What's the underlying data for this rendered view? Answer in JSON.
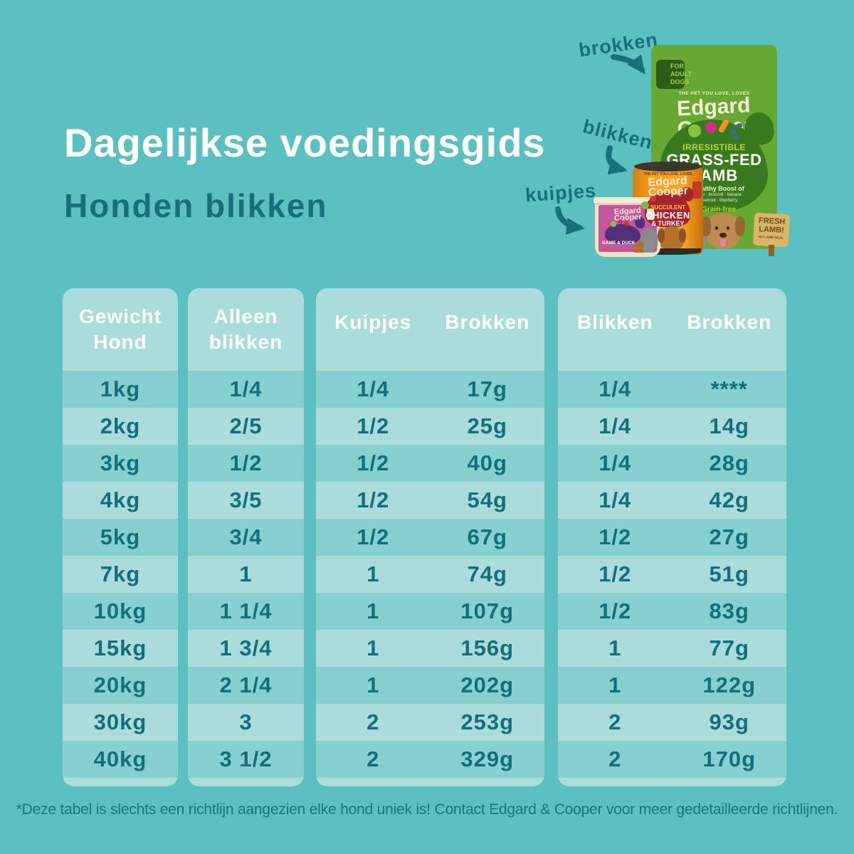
{
  "title": "Dagelijkse voedingsgids",
  "subtitle": "Honden blikken",
  "labels": {
    "brokken": "brokken",
    "blikken": "blikken",
    "kuipjes": "kuipjes"
  },
  "brand": {
    "line1": "Edgard",
    "line2": "Cooper"
  },
  "products": {
    "bag": {
      "badge_l1": "FOR",
      "badge_l2": "ADULT",
      "badge_l3": "DOGS",
      "tagline": "THE PET YOU LOVE, LOVES",
      "flavor_pre": "IRRESISTIBLE",
      "flavor_main1": "GRASS-FED",
      "flavor_main2": "LAMB",
      "boost_title": "Healthy Boost of",
      "boost_line1": "pear · broccoli · banana",
      "boost_line2": "beetroot · blueberry",
      "grain": "Grain-free",
      "sign_l1": "FRESH",
      "sign_l2": "LAMB!",
      "sign_small": "NO LAMB MEAL"
    },
    "can": {
      "tagline": "THE PET YOU LOVE, LOVES",
      "flavor_pre": "SUCCULENT",
      "flavor_main1": "CHICKEN",
      "flavor_main2": "& TURKEY"
    },
    "tub": {
      "flavor_main": "GAME & DUCK"
    }
  },
  "table": {
    "panels": [
      {
        "id": "gewicht-hond",
        "header_lines": [
          "Gewicht",
          "Hond"
        ],
        "rows": [
          [
            "1kg"
          ],
          [
            "2kg"
          ],
          [
            "3kg"
          ],
          [
            "4kg"
          ],
          [
            "5kg"
          ],
          [
            "7kg"
          ],
          [
            "10kg"
          ],
          [
            "15kg"
          ],
          [
            "20kg"
          ],
          [
            "30kg"
          ],
          [
            "40kg"
          ]
        ]
      },
      {
        "id": "alleen-blikken",
        "header_lines": [
          "Alleen",
          "blikken"
        ],
        "rows": [
          [
            "1/4"
          ],
          [
            "2/5"
          ],
          [
            "1/2"
          ],
          [
            "3/5"
          ],
          [
            "3/4"
          ],
          [
            "1"
          ],
          [
            "1 1/4"
          ],
          [
            "1 3/4"
          ],
          [
            "2 1/4"
          ],
          [
            "3"
          ],
          [
            "3 1/2"
          ]
        ]
      },
      {
        "id": "kuipjes-brokken",
        "header_cols": [
          "Kuipjes",
          "Brokken"
        ],
        "rows": [
          [
            "1/4",
            "17g"
          ],
          [
            "1/2",
            "25g"
          ],
          [
            "1/2",
            "40g"
          ],
          [
            "1/2",
            "54g"
          ],
          [
            "1/2",
            "67g"
          ],
          [
            "1",
            "74g"
          ],
          [
            "1",
            "107g"
          ],
          [
            "1",
            "156g"
          ],
          [
            "1",
            "202g"
          ],
          [
            "2",
            "253g"
          ],
          [
            "2",
            "329g"
          ]
        ]
      },
      {
        "id": "blikken-brokken",
        "header_cols": [
          "Blikken",
          "Brokken"
        ],
        "rows": [
          [
            "1/4",
            "****"
          ],
          [
            "1/4",
            "14g"
          ],
          [
            "1/4",
            "28g"
          ],
          [
            "1/4",
            "42g"
          ],
          [
            "1/2",
            "27g"
          ],
          [
            "1/2",
            "51g"
          ],
          [
            "1/2",
            "83g"
          ],
          [
            "1",
            "77g"
          ],
          [
            "1",
            "122g"
          ],
          [
            "2",
            "93g"
          ],
          [
            "2",
            "170g"
          ]
        ]
      }
    ]
  },
  "footnote": "*Deze tabel is slechts een richtlijn aangezien elke hond uniek is! Contact Edgard & Cooper voor meer gedetailleerde richtlijnen.",
  "colors": {
    "background": "#5cc0c0",
    "panel": "#a9dcdb",
    "row_stripe": "#87d0cf",
    "text_teal": "#17717c",
    "header_white": "#ffffff",
    "bag_green": "#67a832",
    "bag_dark_green": "#3a7a1e",
    "can_orange": "#f7a125",
    "tub_pink": "#c4569c",
    "cream": "#f5eed6"
  }
}
